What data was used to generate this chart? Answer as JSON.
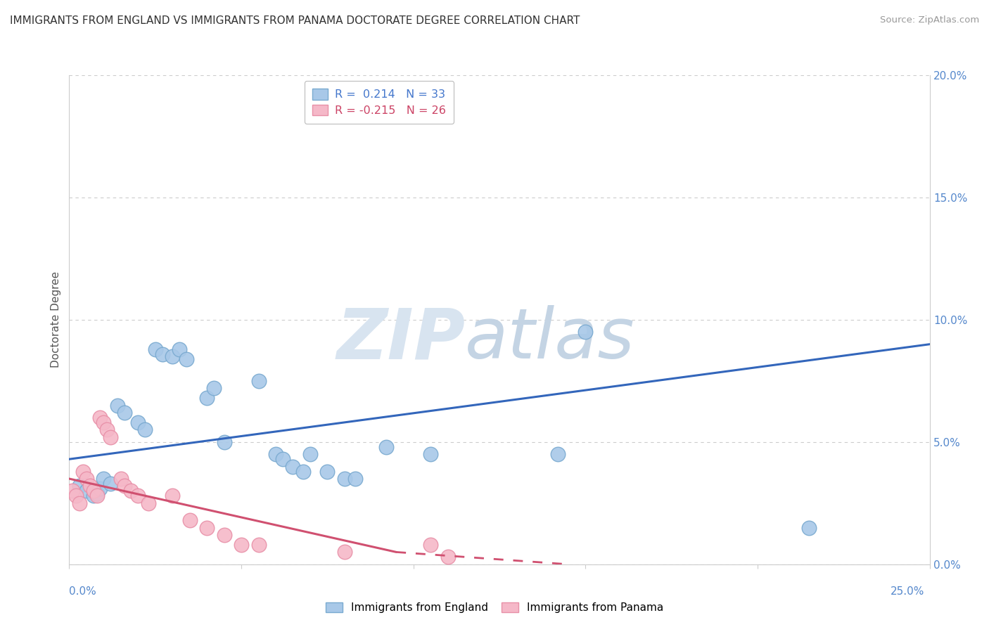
{
  "title": "IMMIGRANTS FROM ENGLAND VS IMMIGRANTS FROM PANAMA DOCTORATE DEGREE CORRELATION CHART",
  "source": "Source: ZipAtlas.com",
  "ylabel": "Doctorate Degree",
  "ylabel_right_vals": [
    0.0,
    5.0,
    10.0,
    15.0,
    20.0
  ],
  "xlim": [
    0.0,
    25.0
  ],
  "ylim": [
    0.0,
    20.0
  ],
  "legend_england_r": "0.214",
  "legend_england_n": "33",
  "legend_panama_r": "-0.215",
  "legend_panama_n": "26",
  "england_color": "#A8C8E8",
  "england_edge_color": "#7AAAD0",
  "panama_color": "#F5B8C8",
  "panama_edge_color": "#E890A8",
  "england_line_color": "#3366BB",
  "panama_line_color": "#D05070",
  "watermark_zip_color": "#D8E4F0",
  "watermark_atlas_color": "#C8D8E8",
  "england_scatter": [
    [
      0.3,
      3.2
    ],
    [
      0.5,
      3.0
    ],
    [
      0.7,
      2.8
    ],
    [
      0.8,
      2.9
    ],
    [
      0.9,
      3.1
    ],
    [
      1.0,
      3.5
    ],
    [
      1.2,
      3.3
    ],
    [
      1.4,
      6.5
    ],
    [
      1.6,
      6.2
    ],
    [
      2.0,
      5.8
    ],
    [
      2.2,
      5.5
    ],
    [
      2.5,
      8.8
    ],
    [
      2.7,
      8.6
    ],
    [
      3.0,
      8.5
    ],
    [
      3.2,
      8.8
    ],
    [
      3.4,
      8.4
    ],
    [
      4.0,
      6.8
    ],
    [
      4.2,
      7.2
    ],
    [
      4.5,
      5.0
    ],
    [
      5.5,
      7.5
    ],
    [
      6.0,
      4.5
    ],
    [
      6.2,
      4.3
    ],
    [
      6.5,
      4.0
    ],
    [
      6.8,
      3.8
    ],
    [
      7.0,
      4.5
    ],
    [
      7.5,
      3.8
    ],
    [
      8.0,
      3.5
    ],
    [
      8.3,
      3.5
    ],
    [
      9.2,
      4.8
    ],
    [
      10.5,
      4.5
    ],
    [
      14.2,
      4.5
    ],
    [
      15.0,
      9.5
    ],
    [
      21.5,
      1.5
    ]
  ],
  "panama_scatter": [
    [
      0.1,
      3.0
    ],
    [
      0.2,
      2.8
    ],
    [
      0.3,
      2.5
    ],
    [
      0.4,
      3.8
    ],
    [
      0.5,
      3.5
    ],
    [
      0.6,
      3.2
    ],
    [
      0.7,
      3.0
    ],
    [
      0.8,
      2.8
    ],
    [
      0.9,
      6.0
    ],
    [
      1.0,
      5.8
    ],
    [
      1.1,
      5.5
    ],
    [
      1.2,
      5.2
    ],
    [
      1.5,
      3.5
    ],
    [
      1.6,
      3.2
    ],
    [
      1.8,
      3.0
    ],
    [
      2.0,
      2.8
    ],
    [
      2.3,
      2.5
    ],
    [
      3.0,
      2.8
    ],
    [
      3.5,
      1.8
    ],
    [
      4.0,
      1.5
    ],
    [
      4.5,
      1.2
    ],
    [
      5.0,
      0.8
    ],
    [
      5.5,
      0.8
    ],
    [
      8.0,
      0.5
    ],
    [
      10.5,
      0.8
    ],
    [
      11.0,
      0.3
    ]
  ],
  "england_trend": [
    0.0,
    25.0,
    4.3,
    9.0
  ],
  "panama_trend_solid": [
    0.0,
    9.5,
    3.5,
    0.5
  ],
  "panama_trend_dashed": [
    9.5,
    14.5,
    0.5,
    0.0
  ]
}
